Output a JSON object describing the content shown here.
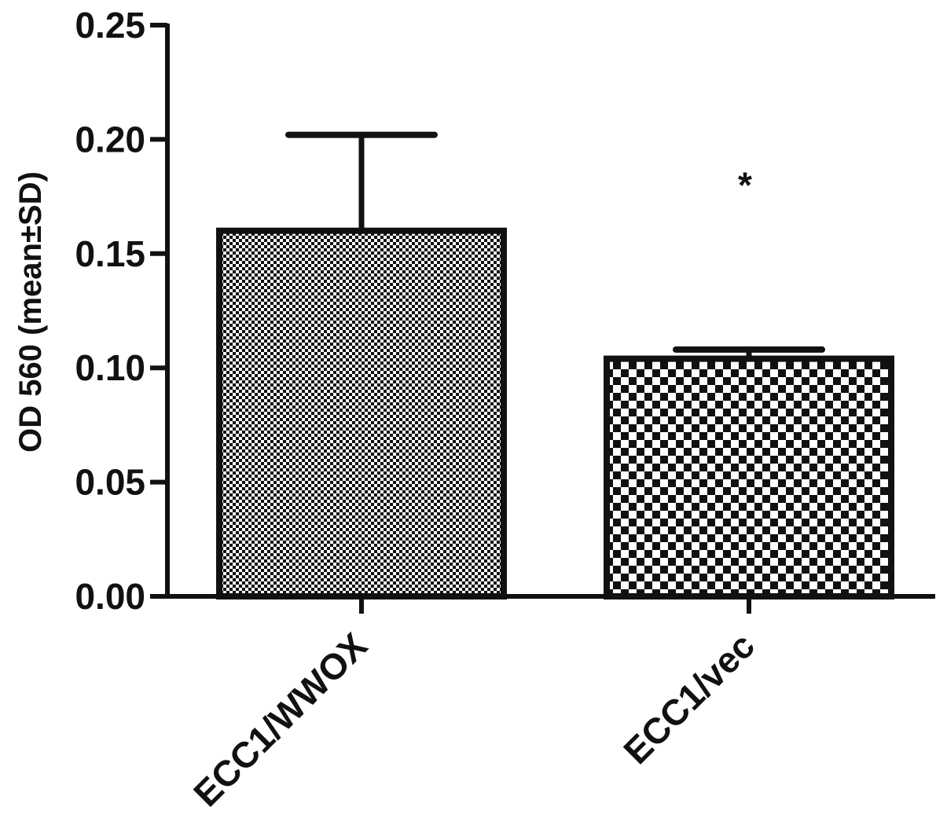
{
  "chart_data": {
    "type": "bar",
    "title": "",
    "xlabel": "",
    "ylabel": "OD 560 (mean±SD)",
    "categories": [
      "ECC1/WWOX",
      "ECC1/vec"
    ],
    "values": [
      0.16,
      0.104
    ],
    "errors": [
      0.042,
      0.004
    ],
    "ylim": [
      0,
      0.25
    ],
    "yticks": [
      0.0,
      0.05,
      0.1,
      0.15,
      0.2,
      0.25
    ],
    "ytick_labels": [
      "0.00",
      "0.05",
      "0.10",
      "0.15",
      "0.20",
      "0.25"
    ],
    "annotations": [
      {
        "category": "ECC1/vec",
        "text": "*",
        "y": 0.182
      }
    ],
    "bar_patterns": [
      "fine-checker",
      "coarse-checker"
    ],
    "colors": {
      "stroke": "#111111",
      "fill_light": "#ffffff"
    },
    "grid": false,
    "legend": "none"
  }
}
